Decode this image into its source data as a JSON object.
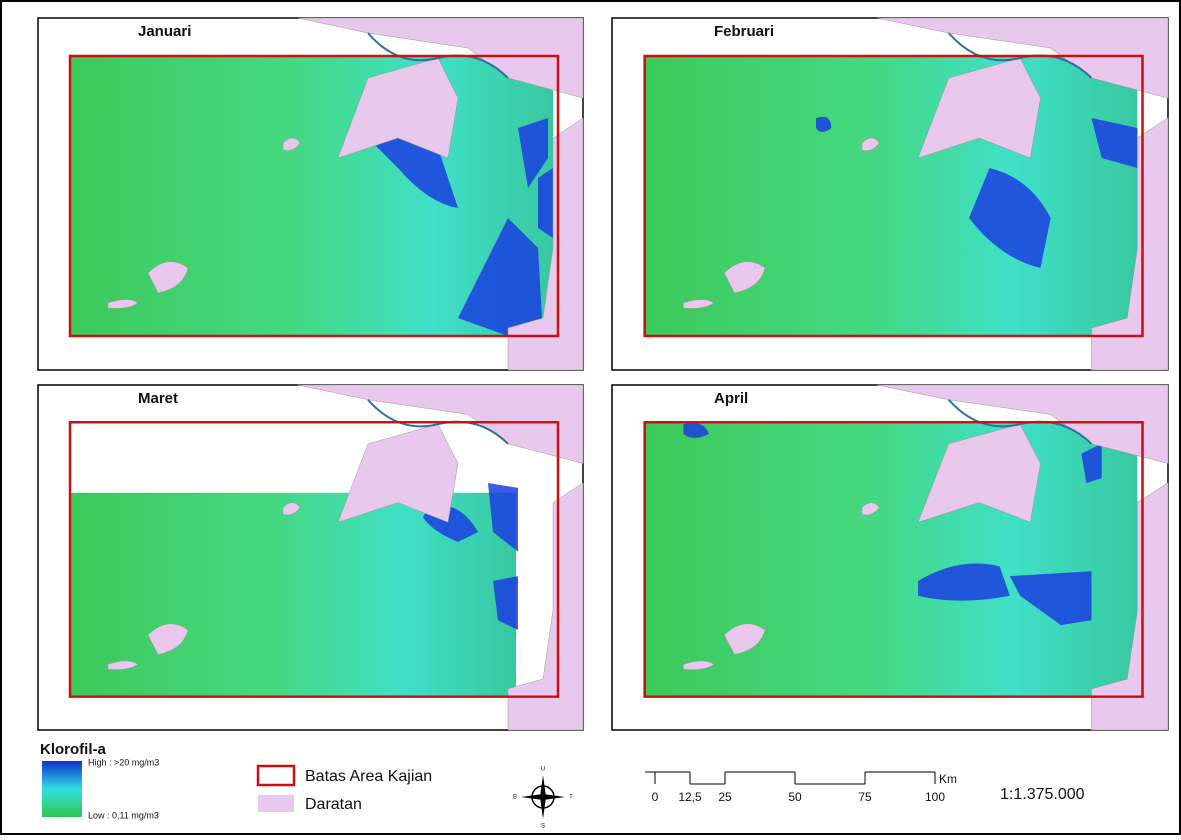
{
  "panels": [
    {
      "title": "Januari"
    },
    {
      "title": "Februari"
    },
    {
      "title": "Maret"
    },
    {
      "title": "April"
    }
  ],
  "legend": {
    "title": "Klorofil-a",
    "high": "High : >20 mg/m3",
    "low": "Low : 0,11 mg/m3",
    "boundary": "Batas Area Kajian",
    "land": "Daratan"
  },
  "compass": {
    "north": "U",
    "east": "T",
    "south": "S",
    "west": "B"
  },
  "scale_bar": {
    "ticks": [
      0,
      {
        "value": 12.5,
        "label": "12,5"
      },
      25,
      50,
      75,
      100
    ],
    "unit": "Km",
    "ratio": "1:1.375.000"
  }
}
